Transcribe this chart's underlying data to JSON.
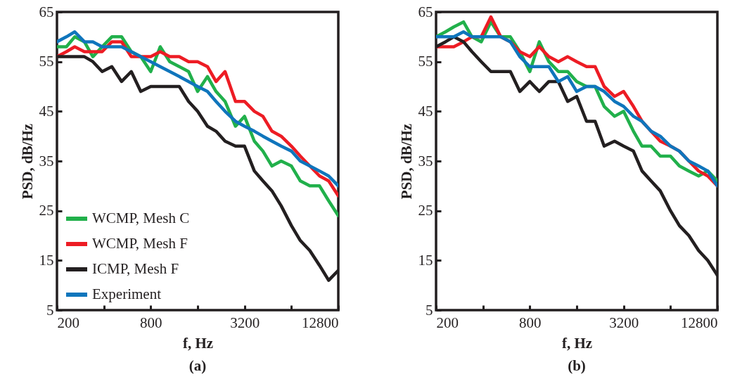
{
  "chart_data": [
    {
      "type": "line",
      "xlabel": "f, Hz",
      "ylabel": "PSD, dB/Hz",
      "annotations": [
        "(a)"
      ],
      "log": "x",
      "legend": "bottom left",
      "x": [
        200,
        230,
        260,
        300,
        340,
        390,
        450,
        520,
        600,
        690,
        800,
        920,
        1060,
        1220,
        1400,
        1600,
        1850,
        2100,
        2400,
        2800,
        3200,
        3700,
        4200,
        4800,
        5500,
        6400,
        7300,
        8400,
        9700,
        11100,
        12800
      ],
      "xlim": [
        200,
        12800
      ],
      "xticks": [
        200,
        {
          "value": 400,
          "label": null
        },
        800,
        {
          "value": 1600,
          "label": null
        },
        3200,
        {
          "value": 6400,
          "label": null
        },
        12800
      ],
      "ylim": [
        5,
        65
      ],
      "yticks": [
        5,
        15,
        25,
        35,
        45,
        55,
        65
      ],
      "series": [
        {
          "name": "WCMP, Mesh C",
          "color": "#21b04b",
          "values": [
            58,
            58,
            60,
            59,
            56,
            58,
            60,
            60,
            57,
            56,
            53,
            58,
            55,
            54,
            53,
            49,
            52,
            49,
            47,
            42,
            44,
            39,
            37,
            34,
            35,
            34,
            31,
            30,
            30,
            27,
            24
          ]
        },
        {
          "name": "WCMP, Mesh F",
          "color": "#ed1c24",
          "values": [
            56,
            57,
            58,
            57,
            57,
            57,
            59,
            59,
            56,
            56,
            56,
            57,
            56,
            56,
            55,
            55,
            54,
            51,
            53,
            47,
            47,
            45,
            44,
            41,
            40,
            38,
            36,
            34,
            32,
            31,
            28
          ]
        },
        {
          "name": "ICMP, Mesh F",
          "color": "#231f20",
          "values": [
            56,
            56,
            56,
            56,
            55,
            53,
            54,
            51,
            53,
            49,
            50,
            50,
            50,
            50,
            47,
            45,
            42,
            41,
            39,
            38,
            38,
            33,
            31,
            29,
            26,
            22,
            19,
            17,
            14,
            11,
            13
          ]
        },
        {
          "name": "Experiment",
          "color": "#0f75bc",
          "values": [
            59,
            60,
            61,
            59,
            59,
            58,
            58,
            58,
            57,
            56,
            55,
            54,
            53,
            52,
            51,
            50,
            49,
            47,
            45,
            43,
            42,
            41,
            40,
            39,
            38,
            37,
            35,
            34,
            33,
            32,
            30
          ]
        }
      ]
    },
    {
      "type": "line",
      "xlabel": "f, Hz",
      "ylabel": "PSD, dB/Hz",
      "annotations": [
        "(b)"
      ],
      "log": "x",
      "x": [
        200,
        230,
        260,
        300,
        340,
        390,
        450,
        520,
        600,
        690,
        800,
        920,
        1060,
        1220,
        1400,
        1600,
        1850,
        2100,
        2400,
        2800,
        3200,
        3700,
        4200,
        4800,
        5500,
        6400,
        7300,
        8400,
        9700,
        11100,
        12800
      ],
      "xlim": [
        200,
        12800
      ],
      "xticks": [
        200,
        {
          "value": 400,
          "label": null
        },
        800,
        {
          "value": 1600,
          "label": null
        },
        3200,
        {
          "value": 6400,
          "label": null
        },
        12800
      ],
      "ylim": [
        5,
        65
      ],
      "yticks": [
        5,
        15,
        25,
        35,
        45,
        55,
        65
      ],
      "series": [
        {
          "color": "#21b04b",
          "values": [
            60,
            61,
            62,
            63,
            60,
            59,
            63,
            60,
            60,
            57,
            53,
            59,
            55,
            53,
            53,
            51,
            50,
            50,
            46,
            44,
            45,
            41,
            38,
            38,
            36,
            36,
            34,
            33,
            32,
            33,
            31
          ]
        },
        {
          "color": "#ed1c24",
          "values": [
            58,
            58,
            58,
            59,
            60,
            60,
            64,
            60,
            59,
            57,
            56,
            58,
            56,
            55,
            56,
            55,
            54,
            54,
            50,
            48,
            49,
            46,
            43,
            41,
            39,
            38,
            37,
            35,
            33,
            32,
            30
          ]
        },
        {
          "color": "#231f20",
          "values": [
            58,
            59,
            60,
            59,
            57,
            55,
            53,
            53,
            53,
            49,
            51,
            49,
            51,
            51,
            47,
            48,
            43,
            43,
            38,
            39,
            38,
            37,
            33,
            31,
            29,
            25,
            22,
            20,
            17,
            15,
            12
          ]
        },
        {
          "color": "#0f75bc",
          "values": [
            60,
            60,
            60,
            61,
            60,
            60,
            60,
            60,
            59,
            56,
            54,
            54,
            54,
            51,
            52,
            49,
            50,
            50,
            49,
            47,
            46,
            44,
            43,
            41,
            40,
            38,
            37,
            35,
            34,
            33,
            30
          ]
        }
      ]
    }
  ]
}
